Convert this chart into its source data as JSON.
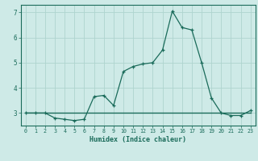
{
  "x": [
    0,
    1,
    2,
    3,
    4,
    5,
    6,
    7,
    8,
    9,
    10,
    11,
    12,
    13,
    14,
    15,
    16,
    17,
    18,
    19,
    20,
    21,
    22,
    23
  ],
  "y_main": [
    3.0,
    3.0,
    3.0,
    2.8,
    2.75,
    2.7,
    2.75,
    3.65,
    3.7,
    3.3,
    4.65,
    4.85,
    4.95,
    5.0,
    5.5,
    7.05,
    6.4,
    6.3,
    5.0,
    3.6,
    3.0,
    2.9,
    2.9,
    3.1
  ],
  "y_flat": [
    3.0,
    3.0,
    3.0,
    3.0,
    3.0,
    3.0,
    3.0,
    3.0,
    3.0,
    3.0,
    3.0,
    3.0,
    3.0,
    3.0,
    3.0,
    3.0,
    3.0,
    3.0,
    3.0,
    3.0,
    3.0,
    3.0,
    3.0,
    3.0
  ],
  "line_color": "#1a6b5a",
  "marker_color": "#1a6b5a",
  "bg_color": "#ceeae7",
  "grid_color": "#aed4cf",
  "axis_color": "#1a6b5a",
  "xlabel": "Humidex (Indice chaleur)",
  "ylim": [
    2.5,
    7.3
  ],
  "xlim": [
    -0.5,
    23.5
  ],
  "yticks": [
    3,
    4,
    5,
    6,
    7
  ],
  "xticks": [
    0,
    1,
    2,
    3,
    4,
    5,
    6,
    7,
    8,
    9,
    10,
    11,
    12,
    13,
    14,
    15,
    16,
    17,
    18,
    19,
    20,
    21,
    22,
    23
  ]
}
